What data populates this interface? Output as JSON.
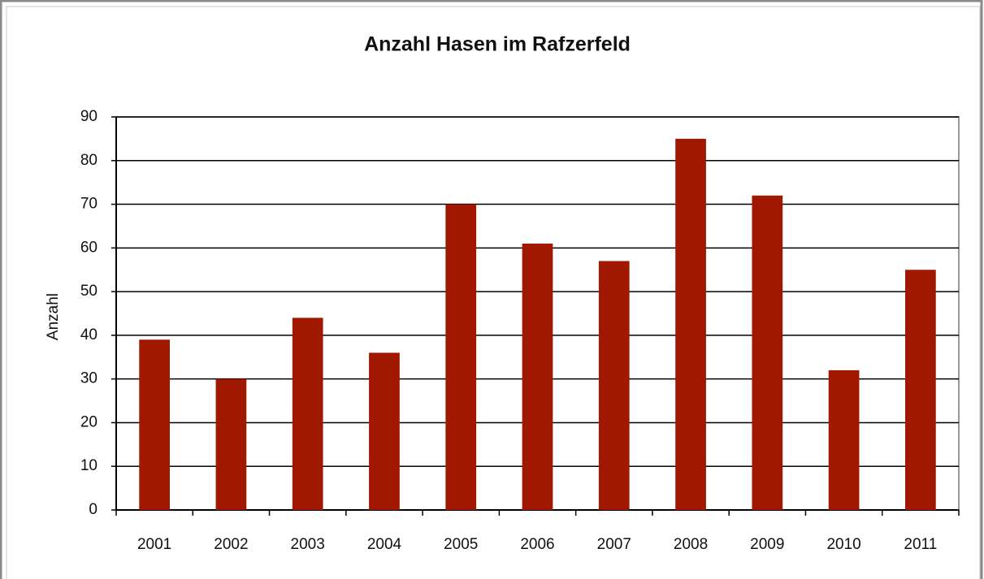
{
  "chart_data": {
    "type": "bar",
    "title": "Anzahl Hasen im Rafzerfeld",
    "y_label": "Anzahl",
    "categories": [
      "2001",
      "2002",
      "2003",
      "2004",
      "2005",
      "2006",
      "2007",
      "2008",
      "2009",
      "2010",
      "2011"
    ],
    "values": [
      39,
      30,
      44,
      36,
      70,
      61,
      57,
      85,
      72,
      32,
      55
    ],
    "color": "#a01800",
    "ylim": [
      0,
      90
    ],
    "yticks": [
      0,
      10,
      20,
      30,
      40,
      50,
      60,
      70,
      80,
      90
    ],
    "grid": true
  }
}
